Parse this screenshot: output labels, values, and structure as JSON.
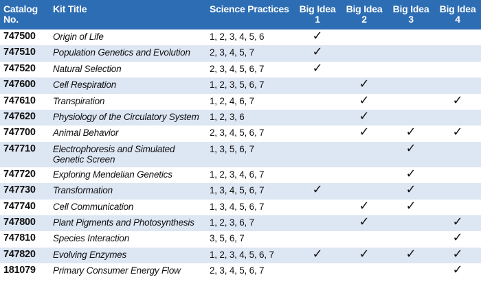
{
  "headers": {
    "catalog": "Catalog No.",
    "title": "Kit Title",
    "practices": "Science Practices",
    "big1": "Big Idea 1",
    "big2": "Big Idea 2",
    "big3": "Big Idea 3",
    "big4": "Big Idea 4"
  },
  "check_mark": "✓",
  "rows": [
    {
      "catalog": "747500",
      "title": "Origin of Life",
      "practices": "1, 2, 3, 4, 5, 6",
      "b1": "✓",
      "b2": "",
      "b3": "",
      "b4": ""
    },
    {
      "catalog": "747510",
      "title": "Population Genetics and Evolution",
      "practices": "2, 3, 4, 5, 7",
      "b1": "✓",
      "b2": "",
      "b3": "",
      "b4": ""
    },
    {
      "catalog": "747520",
      "title": "Natural Selection",
      "practices": "2, 3, 4, 5, 6, 7",
      "b1": "✓",
      "b2": "",
      "b3": "",
      "b4": ""
    },
    {
      "catalog": "747600",
      "title": "Cell Respiration",
      "practices": "1, 2, 3, 5, 6, 7",
      "b1": "",
      "b2": "✓",
      "b3": "",
      "b4": ""
    },
    {
      "catalog": "747610",
      "title": "Transpiration",
      "practices": "1, 2, 4, 6, 7",
      "b1": "",
      "b2": "✓",
      "b3": "",
      "b4": "✓"
    },
    {
      "catalog": "747620",
      "title": "Physiology of the Circulatory System",
      "practices": "1, 2, 3, 6",
      "b1": "",
      "b2": "✓",
      "b3": "",
      "b4": ""
    },
    {
      "catalog": "747700",
      "title": "Animal Behavior",
      "practices": "2, 3, 4, 5, 6, 7",
      "b1": "",
      "b2": "✓",
      "b3": "✓",
      "b4": "✓"
    },
    {
      "catalog": "747710",
      "title": "Electrophoresis and Simulated Genetic Screen",
      "practices": "1, 3, 5, 6, 7",
      "b1": "",
      "b2": "",
      "b3": "✓",
      "b4": ""
    },
    {
      "catalog": "747720",
      "title": "Exploring Mendelian Genetics",
      "practices": "1, 2, 3, 4, 6, 7",
      "b1": "",
      "b2": "",
      "b3": "✓",
      "b4": ""
    },
    {
      "catalog": "747730",
      "title": "Transformation",
      "practices": "1, 3, 4, 5, 6, 7",
      "b1": "✓",
      "b2": "",
      "b3": "✓",
      "b4": ""
    },
    {
      "catalog": "747740",
      "title": "Cell Communication",
      "practices": "1, 3, 4, 5, 6, 7",
      "b1": "",
      "b2": "✓",
      "b3": "✓",
      "b4": ""
    },
    {
      "catalog": "747800",
      "title": "Plant Pigments and Photosynthesis",
      "practices": "1, 2, 3, 6, 7",
      "b1": "",
      "b2": "✓",
      "b3": "",
      "b4": "✓"
    },
    {
      "catalog": "747810",
      "title": "Species Interaction",
      "practices": "3, 5, 6, 7",
      "b1": "",
      "b2": "",
      "b3": "",
      "b4": "✓"
    },
    {
      "catalog": "747820",
      "title": "Evolving Enzymes",
      "practices": "1, 2, 3, 4, 5, 6, 7",
      "b1": "✓",
      "b2": "✓",
      "b3": "✓",
      "b4": "✓"
    },
    {
      "catalog": "181079",
      "title": "Primary Consumer Energy Flow",
      "practices": "2, 3, 4, 5, 6, 7",
      "b1": "",
      "b2": "",
      "b3": "",
      "b4": "✓"
    }
  ]
}
